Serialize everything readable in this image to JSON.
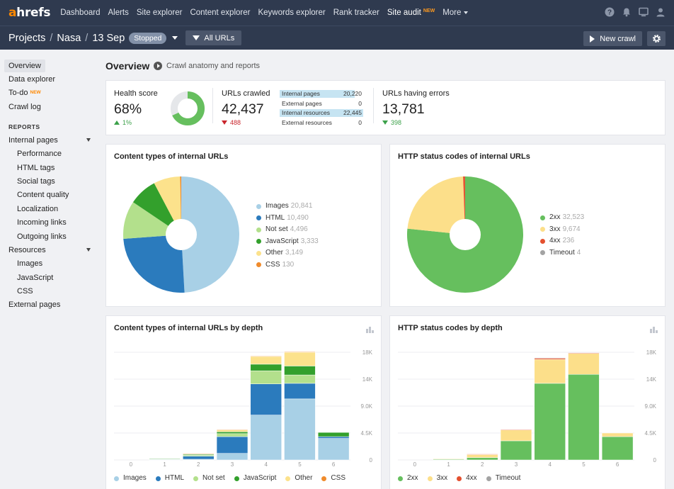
{
  "brand": {
    "logo_prefix": "a",
    "logo_rest": "hrefs"
  },
  "topnav": {
    "items": [
      {
        "label": "Dashboard"
      },
      {
        "label": "Alerts"
      },
      {
        "label": "Site explorer"
      },
      {
        "label": "Content explorer"
      },
      {
        "label": "Keywords explorer"
      },
      {
        "label": "Rank tracker"
      },
      {
        "label": "Site audit",
        "tag": "NEW"
      },
      {
        "label": "More"
      }
    ],
    "icons": [
      "help-icon",
      "bell-icon",
      "monitor-icon",
      "user-icon"
    ]
  },
  "subbar": {
    "crumb_projects": "Projects",
    "crumb_project": "Nasa",
    "crumb_date": "13 Sep",
    "status_badge": "Stopped",
    "filter_label": "All URLs",
    "new_crawl_label": "New crawl"
  },
  "sidebar": {
    "top_items": [
      {
        "label": "Overview"
      },
      {
        "label": "Data explorer"
      },
      {
        "label": "To-do",
        "tag": "NEW"
      },
      {
        "label": "Crawl log"
      }
    ],
    "reports_heading": "REPORTS",
    "internal_pages": "Internal pages",
    "internal_sub": [
      "Performance",
      "HTML tags",
      "Social tags",
      "Content quality",
      "Localization",
      "Incoming links",
      "Outgoing links"
    ],
    "resources": "Resources",
    "resources_sub": [
      "Images",
      "JavaScript",
      "CSS"
    ],
    "external_pages": "External pages"
  },
  "overview": {
    "title": "Overview",
    "subtitle": "Crawl anatomy and reports"
  },
  "stats": {
    "health": {
      "label": "Health score",
      "value": "68%",
      "delta": "1%",
      "percent": 68
    },
    "crawled": {
      "label": "URLs crawled",
      "value": "42,437",
      "delta": "488"
    },
    "breakdown": [
      {
        "label": "Internal pages",
        "value": "20,220",
        "fraction": 0.9
      },
      {
        "label": "External pages",
        "value": "0",
        "fraction": 0
      },
      {
        "label": "Internal resources",
        "value": "22,445",
        "fraction": 1.0
      },
      {
        "label": "External resources",
        "value": "0",
        "fraction": 0
      }
    ],
    "errors": {
      "label": "URLs having errors",
      "value": "13,781",
      "delta": "398"
    }
  },
  "colors": {
    "images": "#a8d0e6",
    "html": "#2b7bbd",
    "notset": "#b3e08c",
    "javascript": "#33a02c",
    "other": "#fce28c",
    "css": "#f08b2c",
    "s2xx": "#66bf5e",
    "s3xx": "#fcdf8a",
    "s4xx": "#e4502f",
    "timeout": "#a3a3a3"
  },
  "chart_data": [
    {
      "type": "pie",
      "title": "Content types of internal URLs",
      "labels": [
        "Images",
        "HTML",
        "Not set",
        "JavaScript",
        "Other",
        "CSS"
      ],
      "values": [
        20841,
        10490,
        4496,
        3333,
        3149,
        130
      ],
      "value_labels": [
        "20,841",
        "10,490",
        "4,496",
        "3,333",
        "3,149",
        "130"
      ]
    },
    {
      "type": "pie",
      "title": "HTTP status codes of internal URLs",
      "labels": [
        "2xx",
        "3xx",
        "4xx",
        "Timeout"
      ],
      "values": [
        32523,
        9674,
        236,
        4
      ],
      "value_labels": [
        "32,523",
        "9,674",
        "236",
        "4"
      ]
    },
    {
      "type": "bar",
      "stacked": true,
      "title": "Content types of internal URLs by depth",
      "categories": [
        "0",
        "1",
        "2",
        "3",
        "4",
        "5",
        "6"
      ],
      "y_ticks": [
        "0",
        "4.5K",
        "9.0K",
        "14K",
        "18K"
      ],
      "ylim": [
        0,
        18000
      ],
      "series": [
        {
          "name": "Images",
          "values": [
            0,
            30,
            120,
            1100,
            7500,
            10200,
            3600
          ]
        },
        {
          "name": "HTML",
          "values": [
            0,
            80,
            500,
            2800,
            5200,
            2600,
            300
          ]
        },
        {
          "name": "Not set",
          "values": [
            0,
            10,
            150,
            500,
            2200,
            1400,
            0
          ]
        },
        {
          "name": "JavaScript",
          "values": [
            0,
            10,
            150,
            300,
            1100,
            1500,
            700
          ]
        },
        {
          "name": "Other",
          "values": [
            0,
            0,
            60,
            300,
            1300,
            2300,
            0
          ]
        },
        {
          "name": "CSS",
          "values": [
            0,
            0,
            10,
            10,
            80,
            100,
            0
          ]
        }
      ]
    },
    {
      "type": "bar",
      "stacked": true,
      "title": "HTTP status codes by depth",
      "categories": [
        "0",
        "1",
        "2",
        "3",
        "4",
        "5",
        "6"
      ],
      "y_ticks": [
        "0",
        "4.5K",
        "9.0K",
        "14K",
        "18K"
      ],
      "ylim": [
        0,
        18000
      ],
      "series": [
        {
          "name": "2xx",
          "values": [
            0,
            120,
            400,
            3200,
            12800,
            14300,
            3900
          ]
        },
        {
          "name": "3xx",
          "values": [
            0,
            30,
            500,
            1800,
            4000,
            3500,
            600
          ]
        },
        {
          "name": "4xx",
          "values": [
            0,
            0,
            20,
            40,
            200,
            30,
            0
          ]
        },
        {
          "name": "Timeout",
          "values": [
            0,
            0,
            0,
            0,
            4,
            0,
            0
          ]
        }
      ]
    }
  ]
}
